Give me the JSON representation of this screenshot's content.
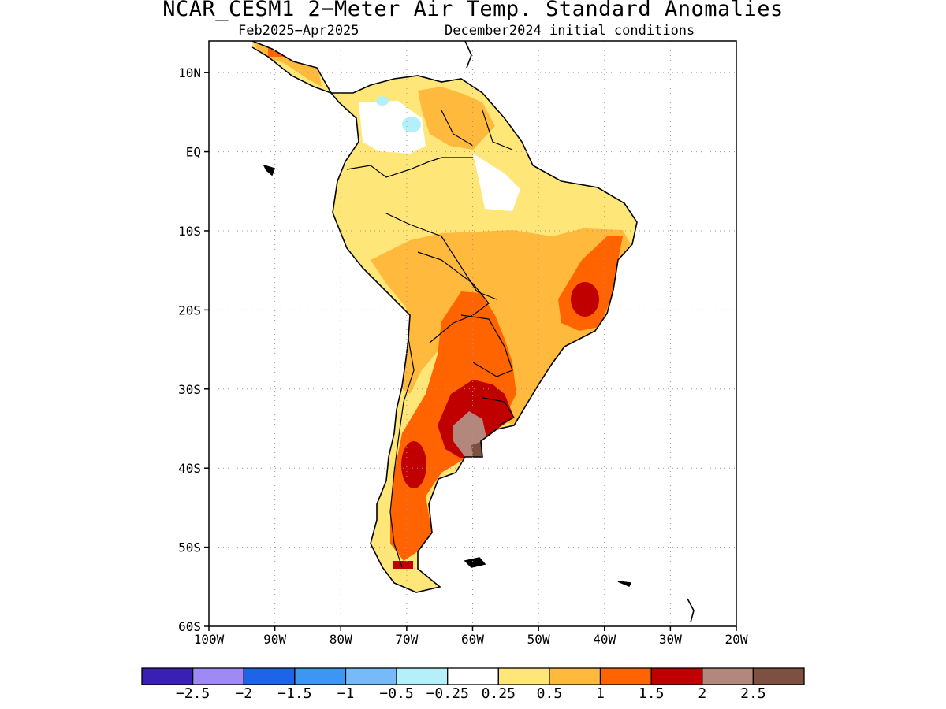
{
  "title": "NCAR_CESM1 2−Meter Air Temp. Standard Anomalies",
  "subtitle_left": "Feb2025−Apr2025",
  "subtitle_right": "December2024 initial conditions",
  "map": {
    "lon_range": [
      -100,
      -20
    ],
    "lat_range": [
      -60,
      14
    ],
    "lat_ticks": [
      {
        "value": 10,
        "label": "10N"
      },
      {
        "value": 0,
        "label": "EQ"
      },
      {
        "value": -10,
        "label": "10S"
      },
      {
        "value": -20,
        "label": "20S"
      },
      {
        "value": -30,
        "label": "30S"
      },
      {
        "value": -40,
        "label": "40S"
      },
      {
        "value": -50,
        "label": "50S"
      },
      {
        "value": -60,
        "label": "60S"
      }
    ],
    "lon_ticks": [
      {
        "value": -100,
        "label": "100W"
      },
      {
        "value": -90,
        "label": "90W"
      },
      {
        "value": -80,
        "label": "80W"
      },
      {
        "value": -70,
        "label": "70W"
      },
      {
        "value": -60,
        "label": "60W"
      },
      {
        "value": -50,
        "label": "50W"
      },
      {
        "value": -40,
        "label": "40W"
      },
      {
        "value": -30,
        "label": "30W"
      },
      {
        "value": -20,
        "label": "20W"
      }
    ],
    "gridlines": "dotted"
  },
  "colorbar": {
    "colors": [
      "#3a1fb5",
      "#9f89f5",
      "#1e64e6",
      "#3c96f2",
      "#78b9fa",
      "#b4f0fa",
      "#ffffff",
      "#ffe678",
      "#ffb93c",
      "#ff6400",
      "#c00000",
      "#b4877d",
      "#7d5041"
    ],
    "labels": [
      "−2.5",
      "−2",
      "−1.5",
      "−1",
      "−0.5",
      "−0.25",
      "0.25",
      "0.5",
      "1",
      "1.5",
      "2",
      "2.5"
    ]
  },
  "anomaly_regions": [
    {
      "name": "northern-south-america-light",
      "level": "0.25-0.5",
      "color": "#ffe678"
    },
    {
      "name": "central-brazil-moderate",
      "level": "0.5-1",
      "color": "#ffb93c"
    },
    {
      "name": "eastern-brazil-strong",
      "level": "1-1.5",
      "color": "#ff6400"
    },
    {
      "name": "eastern-brazil-core",
      "level": "1.5-2",
      "color": "#c00000"
    },
    {
      "name": "colombia-venezuela-near-normal",
      "level": "-0.25-0.25",
      "color": "#ffffff"
    },
    {
      "name": "colombia-slight-cool",
      "level": "-0.5--0.25",
      "color": "#b4f0fa"
    },
    {
      "name": "argentina-strong",
      "level": "1-1.5",
      "color": "#ff6400"
    },
    {
      "name": "argentina-very-strong",
      "level": "1.5-2",
      "color": "#c00000"
    },
    {
      "name": "pampas-extreme",
      "level": "2-2.5",
      "color": "#b4877d"
    },
    {
      "name": "pampas-peak",
      "level": ">2.5",
      "color": "#7d5041"
    }
  ]
}
